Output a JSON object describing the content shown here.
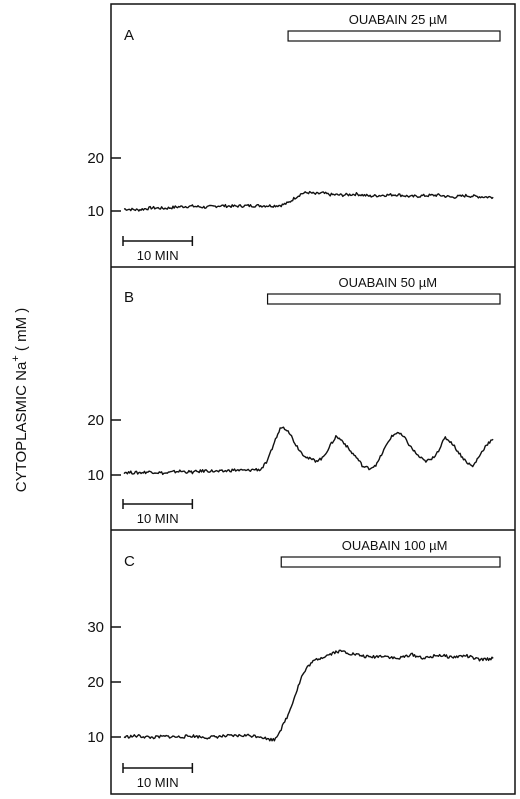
{
  "figure": {
    "ylabel_main": "CYTOPLASMIC Na",
    "ylabel_sup": "+",
    "ylabel_unit": " ( mM )"
  },
  "chart_data": [
    {
      "type": "line",
      "panel": "A",
      "drug_label": "OUABAIN  25 µM",
      "scale_bar_label": "10 MIN",
      "yticks": [
        10,
        20
      ],
      "ylim": [
        5,
        44
      ],
      "xlim": [
        0,
        55
      ],
      "drug_on": 24,
      "drug_off": 55,
      "series": [
        {
          "x": [
            0,
            2,
            4,
            6,
            8,
            10,
            12,
            14,
            16,
            18,
            20,
            22,
            23,
            24,
            25,
            26,
            27,
            28,
            29,
            30,
            32,
            34,
            36,
            38,
            40,
            42,
            44,
            46,
            48,
            50,
            52,
            54
          ],
          "values": [
            10.4,
            10.2,
            10.6,
            10.5,
            10.8,
            10.9,
            10.7,
            11.0,
            10.9,
            11.0,
            11.0,
            11.0,
            11.1,
            11.5,
            12.5,
            13.3,
            13.5,
            13.2,
            13.4,
            13.1,
            13.0,
            13.2,
            12.8,
            13.0,
            13.1,
            12.7,
            12.9,
            13.0,
            12.6,
            12.9,
            12.7,
            12.6
          ]
        }
      ]
    },
    {
      "type": "line",
      "panel": "B",
      "drug_label": "OUABAIN  50 µM",
      "scale_bar_label": "10 MIN",
      "yticks": [
        10,
        20
      ],
      "ylim": [
        5,
        44
      ],
      "xlim": [
        0,
        55
      ],
      "drug_on": 21,
      "drug_off": 55,
      "series": [
        {
          "x": [
            0,
            2,
            4,
            6,
            8,
            10,
            12,
            14,
            16,
            18,
            19,
            20,
            21,
            22,
            23,
            24,
            25,
            26,
            27,
            28,
            29,
            30,
            31,
            32,
            33,
            34,
            35,
            36,
            37,
            38,
            39,
            40,
            41,
            42,
            43,
            44,
            45,
            46,
            47,
            48,
            49,
            50,
            51,
            52,
            53,
            54
          ],
          "values": [
            10.5,
            10.4,
            10.6,
            10.3,
            10.7,
            10.5,
            10.8,
            10.6,
            10.9,
            10.8,
            11.0,
            11.0,
            12.5,
            16.0,
            18.8,
            18.2,
            15.8,
            14.0,
            13.0,
            12.6,
            13.0,
            15.0,
            17.0,
            16.2,
            14.5,
            13.2,
            11.5,
            11.2,
            12.0,
            14.5,
            16.8,
            17.8,
            16.8,
            15.0,
            13.5,
            12.5,
            12.8,
            14.5,
            16.8,
            15.8,
            14.0,
            12.5,
            11.5,
            13.5,
            15.5,
            16.5
          ]
        }
      ]
    },
    {
      "type": "line",
      "panel": "C",
      "drug_label": "OUABAIN  100 µM",
      "scale_bar_label": "10 MIN",
      "yticks": [
        10,
        20,
        30
      ],
      "ylim": [
        2,
        41
      ],
      "xlim": [
        0,
        55
      ],
      "drug_on": 23,
      "drug_off": 55,
      "series": [
        {
          "x": [
            0,
            2,
            4,
            6,
            8,
            10,
            12,
            14,
            16,
            18,
            20,
            21,
            22,
            23,
            24,
            25,
            26,
            27,
            28,
            29,
            30,
            31,
            32,
            33,
            34,
            35,
            36,
            38,
            40,
            42,
            44,
            46,
            48,
            50,
            52,
            54
          ],
          "values": [
            10.0,
            10.2,
            9.9,
            10.1,
            10.0,
            10.2,
            9.9,
            10.1,
            10.2,
            10.3,
            10.1,
            9.6,
            9.5,
            11.5,
            14.0,
            17.5,
            21.0,
            23.0,
            24.0,
            24.5,
            25.0,
            25.5,
            25.6,
            25.2,
            25.0,
            24.7,
            24.5,
            24.8,
            24.2,
            25.0,
            24.3,
            24.9,
            24.5,
            24.8,
            24.0,
            24.3
          ]
        }
      ]
    }
  ]
}
